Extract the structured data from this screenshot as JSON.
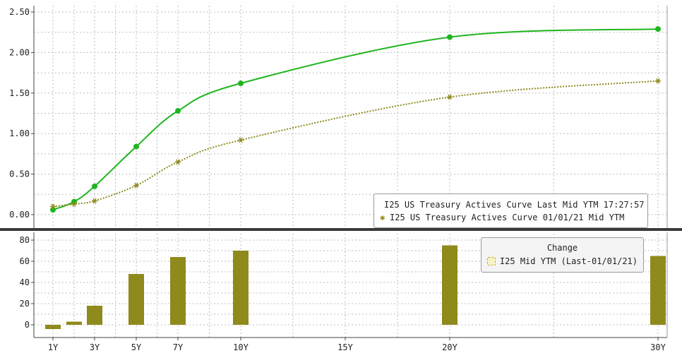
{
  "chart_data": [
    {
      "type": "line",
      "x_labels": [
        "1Y",
        "3Y",
        "5Y",
        "7Y",
        "10Y",
        "15Y",
        "20Y",
        "30Y"
      ],
      "y_ticks": [
        "2.50",
        "2.00",
        "1.50",
        "1.00",
        "0.50",
        "0.00"
      ],
      "ylim": [
        -0.1,
        2.6
      ],
      "grid": true,
      "legend_position": "bottom-right",
      "series": [
        {
          "name": "I25 US Treasury Actives Curve Last Mid YTM 17:27:57",
          "color": "#1fb51f",
          "marker": "circle",
          "line": "solid",
          "x": [
            1,
            2,
            3,
            5,
            7,
            10,
            20,
            30
          ],
          "y": [
            0.06,
            0.16,
            0.35,
            0.84,
            1.28,
            1.62,
            2.19,
            2.29
          ]
        },
        {
          "name": "I25 US Treasury Actives Curve 01/01/21 Mid YTM",
          "color": "#8f8a1c",
          "marker": "star",
          "line": "dotted",
          "x": [
            1,
            2,
            3,
            5,
            7,
            10,
            20,
            30
          ],
          "y": [
            0.1,
            0.13,
            0.17,
            0.36,
            0.65,
            0.92,
            1.45,
            1.65
          ]
        }
      ]
    },
    {
      "type": "bar",
      "x_labels": [
        "1Y",
        "3Y",
        "5Y",
        "7Y",
        "10Y",
        "15Y",
        "20Y",
        "30Y"
      ],
      "y_ticks": [
        "80",
        "60",
        "40",
        "20",
        "0"
      ],
      "ylim": [
        -8,
        84
      ],
      "grid": true,
      "legend_position": "top-right",
      "legend_title": "Change",
      "series": [
        {
          "name": "I25 Mid YTM (Last-01/01/21)",
          "color": "#8f8a1c",
          "x": [
            1,
            2,
            3,
            5,
            7,
            10,
            20,
            30
          ],
          "values": [
            -4,
            3,
            18,
            48,
            64,
            70,
            75,
            65
          ]
        }
      ]
    }
  ]
}
